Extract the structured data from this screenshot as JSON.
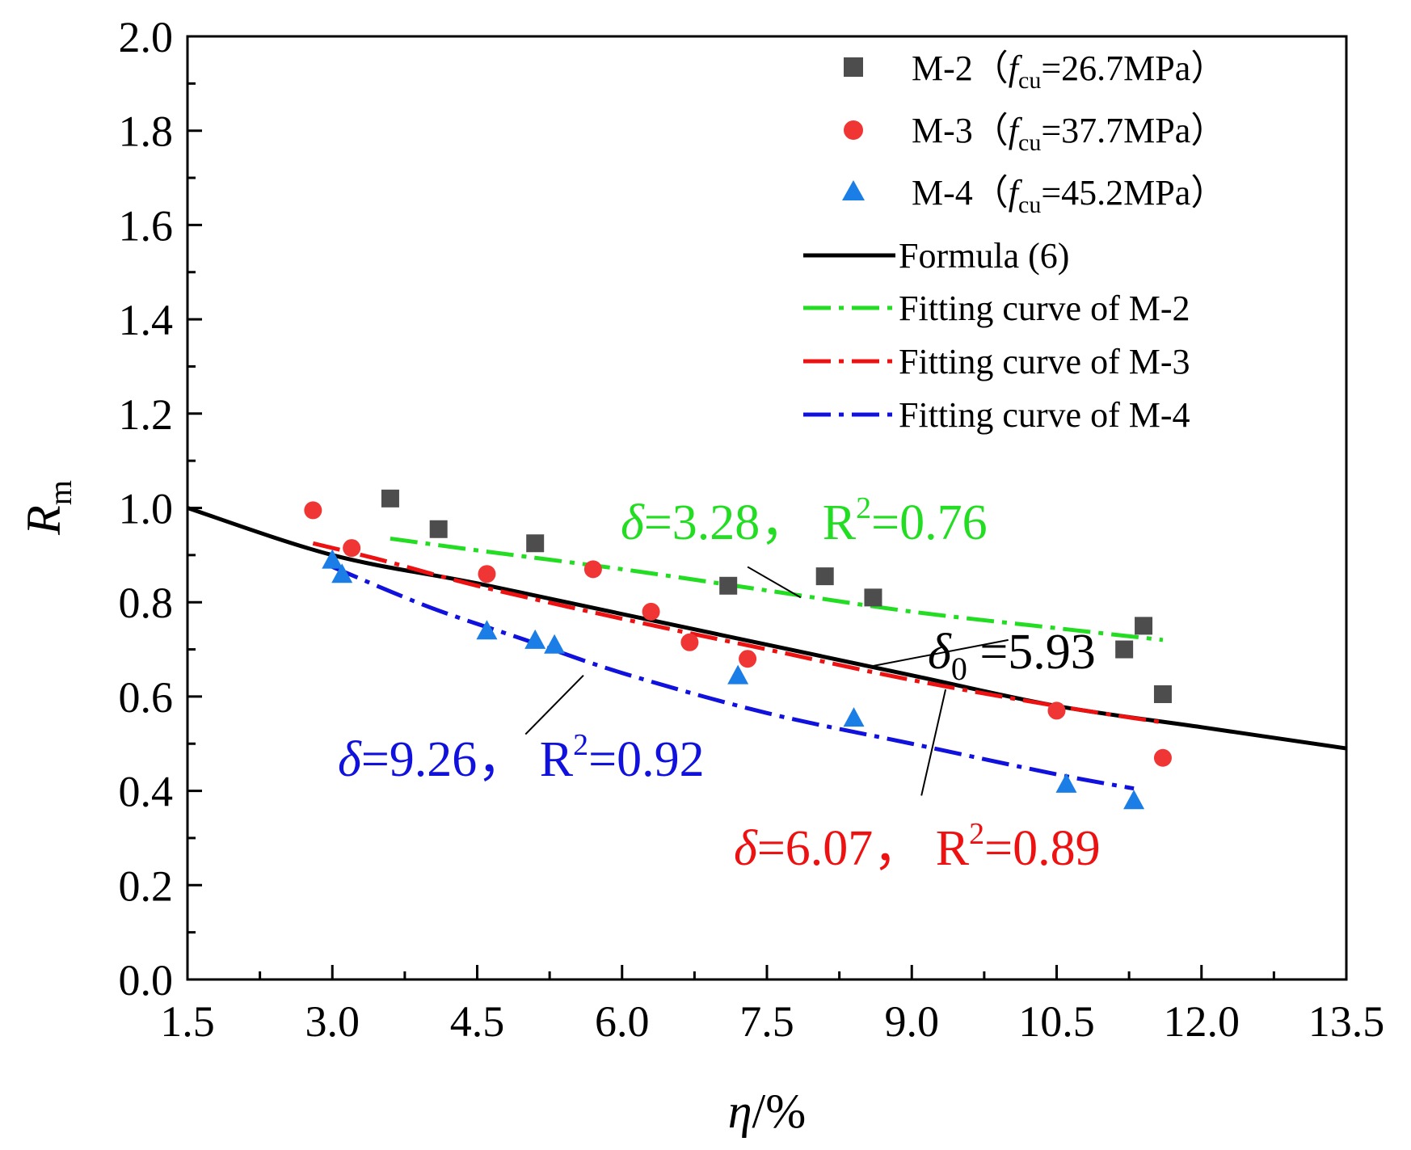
{
  "chart_data": {
    "type": "scatter",
    "xlabel": {
      "symbol": "η",
      "unit": "/%"
    },
    "ylabel": {
      "symbol": "R",
      "subscript": "m"
    },
    "xlim": [
      1.5,
      13.5
    ],
    "ylim": [
      0.0,
      2.0
    ],
    "xticks": [
      "1.5",
      "3.0",
      "4.5",
      "6.0",
      "7.5",
      "9.0",
      "10.5",
      "12.0",
      "13.5"
    ],
    "yticks": [
      "0.0",
      "0.2",
      "0.4",
      "0.6",
      "0.8",
      "1.0",
      "1.2",
      "1.4",
      "1.6",
      "1.8",
      "2.0"
    ],
    "series": [
      {
        "name": "M-2",
        "legend": {
          "prefix": "M-2（",
          "f": "f",
          "sub": "cu",
          "suffix": "=26.7MPa）"
        },
        "marker": "square",
        "color": "#4d4d4d",
        "points": [
          [
            3.6,
            1.02
          ],
          [
            4.1,
            0.955
          ],
          [
            5.1,
            0.925
          ],
          [
            7.1,
            0.835
          ],
          [
            8.1,
            0.855
          ],
          [
            8.6,
            0.81
          ],
          [
            11.2,
            0.7
          ],
          [
            11.4,
            0.75
          ],
          [
            11.6,
            0.605
          ]
        ]
      },
      {
        "name": "M-3",
        "legend": {
          "prefix": "M-3（",
          "f": "f",
          "sub": "cu",
          "suffix": "=37.7MPa）"
        },
        "marker": "circle",
        "color": "#f03535",
        "points": [
          [
            2.8,
            0.995
          ],
          [
            3.2,
            0.915
          ],
          [
            4.6,
            0.86
          ],
          [
            5.7,
            0.87
          ],
          [
            6.3,
            0.78
          ],
          [
            6.7,
            0.715
          ],
          [
            7.3,
            0.68
          ],
          [
            10.5,
            0.57
          ],
          [
            11.6,
            0.47
          ]
        ]
      },
      {
        "name": "M-4",
        "legend": {
          "prefix": "M-4（",
          "f": "f",
          "sub": "cu",
          "suffix": "=45.2MPa）"
        },
        "marker": "triangle",
        "color": "#1a7ee6",
        "points": [
          [
            3.0,
            0.89
          ],
          [
            3.1,
            0.86
          ],
          [
            4.6,
            0.74
          ],
          [
            5.1,
            0.72
          ],
          [
            5.3,
            0.71
          ],
          [
            7.2,
            0.645
          ],
          [
            8.4,
            0.555
          ],
          [
            10.6,
            0.415
          ],
          [
            11.3,
            0.38
          ]
        ]
      }
    ],
    "curves": [
      {
        "name": "Formula (6)",
        "color": "#000000",
        "style": "solid",
        "points": [
          [
            1.5,
            1.0
          ],
          [
            3.0,
            0.9
          ],
          [
            4.5,
            0.84
          ],
          [
            6.0,
            0.775
          ],
          [
            7.5,
            0.71
          ],
          [
            9.0,
            0.645
          ],
          [
            10.5,
            0.58
          ],
          [
            12.0,
            0.535
          ],
          [
            13.5,
            0.49
          ]
        ]
      },
      {
        "name": "Fitting curve of M-2",
        "color": "#22dd22",
        "style": "dashdot",
        "points": [
          [
            3.6,
            0.935
          ],
          [
            4.5,
            0.91
          ],
          [
            6.0,
            0.87
          ],
          [
            7.5,
            0.825
          ],
          [
            9.0,
            0.78
          ],
          [
            10.5,
            0.745
          ],
          [
            11.6,
            0.72
          ]
        ]
      },
      {
        "name": "Fitting curve of M-3",
        "color": "#ee1111",
        "style": "dashdot",
        "points": [
          [
            2.8,
            0.925
          ],
          [
            3.5,
            0.89
          ],
          [
            4.5,
            0.835
          ],
          [
            6.0,
            0.765
          ],
          [
            7.5,
            0.7
          ],
          [
            9.0,
            0.635
          ],
          [
            10.5,
            0.58
          ],
          [
            11.6,
            0.545
          ]
        ]
      },
      {
        "name": "Fitting curve of M-4",
        "color": "#1111dd",
        "style": "dashdot",
        "points": [
          [
            3.0,
            0.875
          ],
          [
            4.0,
            0.79
          ],
          [
            5.0,
            0.72
          ],
          [
            6.0,
            0.65
          ],
          [
            7.5,
            0.565
          ],
          [
            9.0,
            0.5
          ],
          [
            10.5,
            0.435
          ],
          [
            11.3,
            0.405
          ]
        ]
      }
    ],
    "annotations": [
      {
        "id": "m2",
        "sym": "δ",
        "sub": "",
        "text": "=3.28， R",
        "sup": "2",
        "tail": "=0.76",
        "color": "#22dd22"
      },
      {
        "id": "formula",
        "sym": "δ",
        "sub": "0",
        "text": " =5.93",
        "sup": "",
        "tail": "",
        "color": "#000000"
      },
      {
        "id": "m4",
        "sym": "δ",
        "sub": "",
        "text": "=9.26， R",
        "sup": "2",
        "tail": "=0.92",
        "color": "#1111dd"
      },
      {
        "id": "m3",
        "sym": "δ",
        "sub": "",
        "text": "=6.07， R",
        "sup": "2",
        "tail": "=0.89",
        "color": "#ee1111"
      }
    ]
  }
}
